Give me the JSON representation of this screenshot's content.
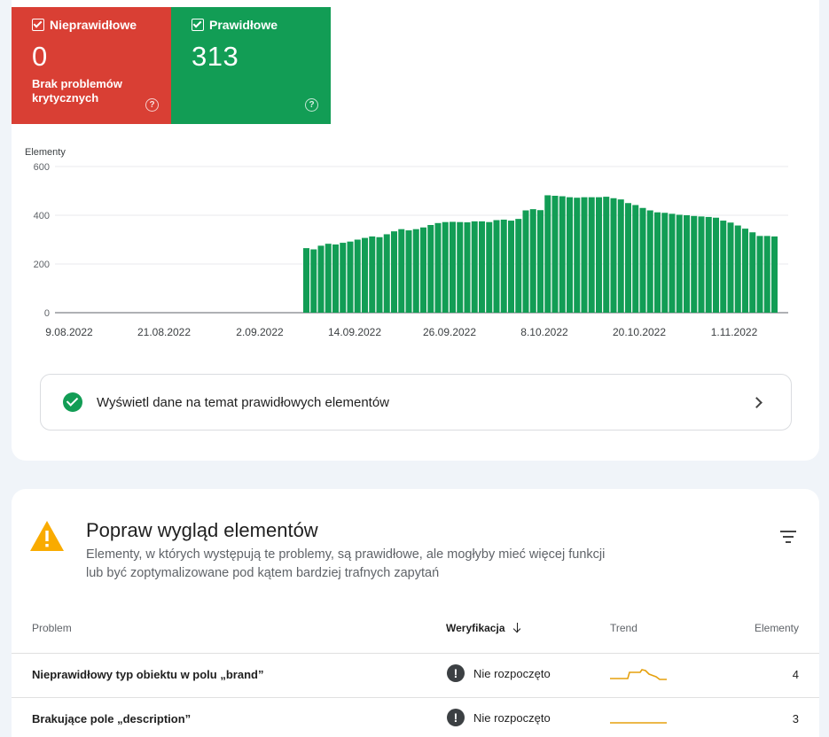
{
  "tiles": {
    "invalid": {
      "label": "Nieprawidłowe",
      "value": "0",
      "sub": "Brak problemów krytycznych"
    },
    "valid": {
      "label": "Prawidłowe",
      "value": "313"
    },
    "help_glyph": "?"
  },
  "chart_data": {
    "type": "bar",
    "ylabel": "Elementy",
    "ylim": [
      0,
      600
    ],
    "yticks": [
      "600",
      "400",
      "200",
      "0"
    ],
    "xticks": [
      "9.08.2022",
      "21.08.2022",
      "2.09.2022",
      "14.09.2022",
      "26.09.2022",
      "8.10.2022",
      "20.10.2022",
      "1.11.2022"
    ],
    "grid": true,
    "color": "#129d55",
    "values": [
      265,
      260,
      275,
      283,
      280,
      287,
      292,
      300,
      307,
      313,
      310,
      322,
      334,
      343,
      338,
      343,
      350,
      360,
      368,
      372,
      373,
      372,
      371,
      375,
      375,
      372,
      380,
      382,
      378,
      385,
      420,
      425,
      421,
      482,
      480,
      478,
      474,
      472,
      474,
      474,
      474,
      476,
      470,
      465,
      450,
      442,
      430,
      420,
      412,
      410,
      406,
      402,
      400,
      397,
      395,
      393,
      390,
      378,
      370,
      358,
      345,
      330,
      315,
      315,
      313
    ]
  },
  "view_button": {
    "label": "Wyświetl dane na temat prawidłowych elementów"
  },
  "section": {
    "title": "Popraw wygląd elementów",
    "description": "Elementy, w których występują te problemy, są prawidłowe, ale mogłyby mieć więcej funkcji lub być zoptymalizowane pod kątem bardziej trafnych zapytań"
  },
  "table": {
    "headers": {
      "problem": "Problem",
      "verification": "Weryfikacja",
      "trend": "Trend",
      "elements": "Elementy"
    },
    "rows": [
      {
        "problem": "Nieprawidłowy typ obiektu w polu „brand”",
        "status": "Nie rozpoczęto",
        "count": "4",
        "status_icon": "!"
      },
      {
        "problem": "Brakujące pole „description”",
        "status": "Nie rozpoczęto",
        "count": "3",
        "status_icon": "!"
      }
    ],
    "trend_color": "#e5a00d"
  }
}
